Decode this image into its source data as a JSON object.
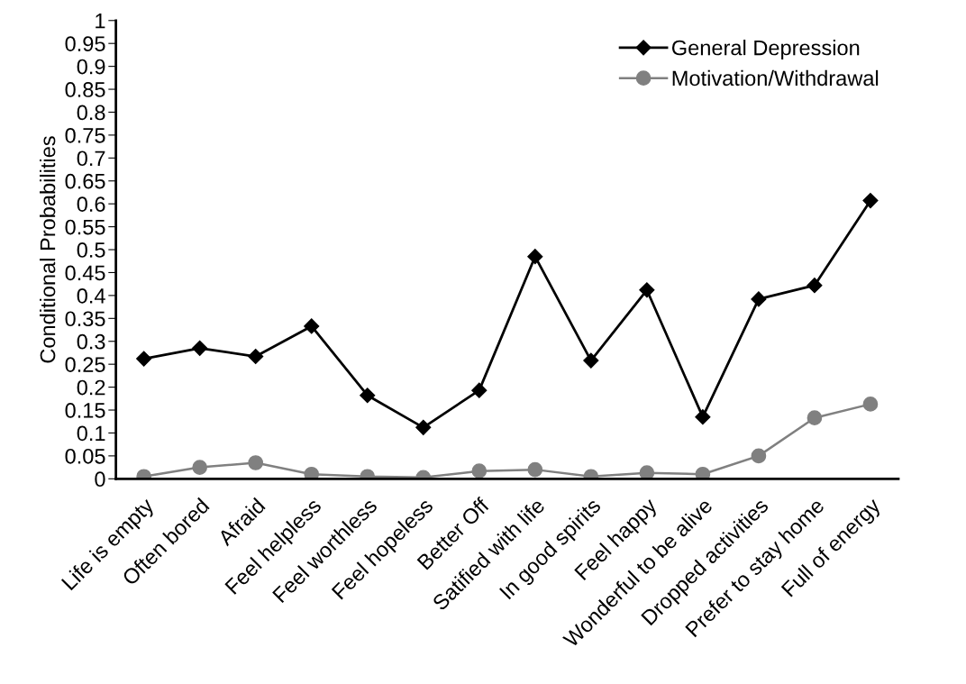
{
  "chart_data": {
    "type": "line",
    "ylabel": "Conditional Probabilities",
    "categories": [
      "Life is empty",
      "Often bored",
      "Afraid",
      "Feel helpless",
      "Feel worthless",
      "Feel hopeless",
      "Better Off",
      "Satified with life",
      "In good spirits",
      "Feel happy",
      "Wonderful to be alive",
      "Dropped activities",
      "Prefer to stay home",
      "Full of energy"
    ],
    "series": [
      {
        "name": "General Depression",
        "color": "#000000",
        "marker": "diamond",
        "values": [
          0.262,
          0.285,
          0.267,
          0.333,
          0.182,
          0.112,
          0.193,
          0.485,
          0.258,
          0.412,
          0.135,
          0.392,
          0.422,
          0.607
        ]
      },
      {
        "name": "Motivation/Withdrawal",
        "color": "#808080",
        "marker": "circle",
        "values": [
          0.005,
          0.025,
          0.035,
          0.01,
          0.005,
          0.003,
          0.017,
          0.02,
          0.005,
          0.013,
          0.01,
          0.05,
          0.133,
          0.163
        ]
      }
    ],
    "ylim": [
      0,
      1
    ],
    "yticks": [
      0,
      0.05,
      0.1,
      0.15,
      0.2,
      0.25,
      0.3,
      0.35,
      0.4,
      0.45,
      0.5,
      0.55,
      0.6,
      0.65,
      0.7,
      0.75,
      0.8,
      0.85,
      0.9,
      0.95,
      1
    ],
    "grid": false,
    "legend": "top right",
    "line_style": "solid"
  }
}
